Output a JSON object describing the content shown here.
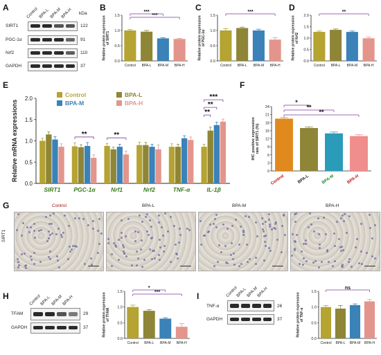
{
  "panels": {
    "A": {
      "label": "A",
      "lanes": [
        "Control",
        "BPA-L",
        "BPA-M",
        "BPA-H"
      ],
      "kda_header": "kDa",
      "rows": [
        {
          "name": "SIRT1",
          "kda": "122"
        },
        {
          "name": "PGC-1α",
          "kda": "91"
        },
        {
          "name": "Nrf2",
          "kda": "110"
        },
        {
          "name": "GAPDH",
          "kda": "37"
        }
      ]
    },
    "H_blot": {
      "label": "H",
      "lanes": [
        "Control",
        "BPA-L",
        "BPA-M",
        "BPA-H"
      ],
      "rows": [
        {
          "name": "TFAM",
          "kda": "29"
        },
        {
          "name": "GAPDH",
          "kda": "37"
        }
      ]
    },
    "I_blot": {
      "label": "I",
      "lanes": [
        "Control",
        "BPA-L",
        "BPA-M",
        "BPA-H"
      ],
      "rows": [
        {
          "name": "TNF-α",
          "kda": "26"
        },
        {
          "name": "GAPDH",
          "kda": "37"
        }
      ]
    },
    "G": {
      "label": "G",
      "row_label": "SIRT1",
      "groups": [
        "Control",
        "BPA-L",
        "BPA-M",
        "BPA-H"
      ]
    },
    "E": {
      "label": "E"
    },
    "F": {
      "label": "F"
    },
    "B": {
      "label": "B"
    },
    "C": {
      "label": "C"
    },
    "D": {
      "label": "D"
    }
  },
  "colors": {
    "control": "#b5a332",
    "bpa_l": "#8e8537",
    "bpa_m": "#3a82b8",
    "bpa_h": "#e3958c",
    "f_control": "#e08a1e",
    "f_bpa_l": "#8e8537",
    "f_bpa_m": "#2a9bb8",
    "f_bpa_h": "#f08d8d",
    "axis_text": "#3a7a1e",
    "sig": "#7a3a9a"
  },
  "chart_data": [
    {
      "id": "B",
      "type": "bar",
      "categories": [
        "Control",
        "BPA-L",
        "BPA-M",
        "BPA-H"
      ],
      "values": [
        1.0,
        0.96,
        0.74,
        0.72
      ],
      "errors": [
        0.03,
        0.04,
        0.02,
        0.02
      ],
      "ylabel": "Relative protein expression of SIRT1",
      "ylim": [
        0,
        1.5
      ],
      "yticks": [
        "0.0",
        "0.5",
        "1.0",
        "1.5"
      ],
      "sig": [
        {
          "from": 0,
          "to": 2,
          "text": "***"
        },
        {
          "from": 0,
          "to": 3,
          "text": "***"
        }
      ]
    },
    {
      "id": "C",
      "type": "bar",
      "categories": [
        "Control",
        "BPA-L",
        "BPA-M",
        "BPA-H"
      ],
      "values": [
        1.0,
        1.08,
        1.0,
        0.7
      ],
      "errors": [
        0.06,
        0.03,
        0.04,
        0.06
      ],
      "ylabel": "Relative protein expression of PGC-1α",
      "ylim": [
        0,
        1.5
      ],
      "yticks": [
        "0.0",
        "0.5",
        "1.0",
        "1.5"
      ],
      "sig": [
        {
          "from": 0,
          "to": 3,
          "text": "***"
        }
      ]
    },
    {
      "id": "D",
      "type": "bar",
      "categories": [
        "Control",
        "BPA-L",
        "BPA-M",
        "BPA-H"
      ],
      "values": [
        1.27,
        1.36,
        1.27,
        0.99
      ],
      "errors": [
        0.04,
        0.04,
        0.04,
        0.05
      ],
      "ylabel": "Relative protein expression of Nrf2",
      "ylim": [
        0,
        2.0
      ],
      "yticks": [
        "0.0",
        "0.5",
        "1.0",
        "1.5",
        "2.0"
      ],
      "sig": [
        {
          "from": 0,
          "to": 3,
          "text": "**"
        }
      ]
    },
    {
      "id": "E",
      "type": "bar",
      "categories": [
        "SIRT1",
        "PGC-1α",
        "Nrf1",
        "Nrf2",
        "TNF-α",
        "IL-1β"
      ],
      "series": [
        {
          "name": "Control",
          "values": [
            1.0,
            0.87,
            0.88,
            0.9,
            0.86,
            0.86
          ],
          "errors": [
            0.06,
            0.08,
            0.06,
            0.07,
            0.07,
            0.06
          ]
        },
        {
          "name": "BPA-L",
          "values": [
            1.15,
            0.85,
            0.8,
            0.9,
            0.86,
            1.24
          ],
          "errors": [
            0.06,
            0.06,
            0.05,
            0.06,
            0.06,
            0.08
          ]
        },
        {
          "name": "BPA-M",
          "values": [
            1.03,
            0.88,
            0.86,
            0.86,
            1.06,
            1.37
          ],
          "errors": [
            0.07,
            0.08,
            0.06,
            0.06,
            0.06,
            0.07
          ]
        },
        {
          "name": "BPA-H",
          "values": [
            0.86,
            0.6,
            0.68,
            0.8,
            1.02,
            1.45
          ],
          "errors": [
            0.07,
            0.07,
            0.08,
            0.1,
            0.07,
            0.06
          ]
        }
      ],
      "ylabel": "Relative mRNA expressions",
      "ylim": [
        0,
        2.0
      ],
      "yticks": [
        "0.0",
        "0.5",
        "1.0",
        "1.5",
        "2.0"
      ],
      "legend": [
        "Control",
        "BPA-L",
        "BPA-M",
        "BPA-H"
      ],
      "sig": [
        {
          "cat": 1,
          "from": 0,
          "to": 3,
          "text": "**"
        },
        {
          "cat": 2,
          "from": 0,
          "to": 3,
          "text": "**"
        },
        {
          "cat": 5,
          "from": 0,
          "to": 1,
          "text": "**"
        },
        {
          "cat": 5,
          "from": 0,
          "to": 2,
          "text": "**"
        },
        {
          "cat": 5,
          "from": 0,
          "to": 3,
          "text": "***"
        }
      ]
    },
    {
      "id": "F",
      "type": "bar",
      "categories": [
        "Control",
        "BPA-L",
        "BPA-M",
        "BPA-H"
      ],
      "values": [
        19.5,
        16.0,
        14.0,
        13.0
      ],
      "errors": [
        0.4,
        0.4,
        0.5,
        0.5
      ],
      "ylabel": "IHC positive expression rate of SIRT1 (%)",
      "ylim": [
        0,
        24
      ],
      "yticks": [
        "0",
        "3",
        "6",
        "9",
        "12",
        "15",
        "18",
        "21",
        "24"
      ],
      "sig": [
        {
          "from": 0,
          "to": 1,
          "text": "*"
        },
        {
          "from": 0,
          "to": 2,
          "text": "**"
        },
        {
          "from": 0,
          "to": 3,
          "text": "**"
        }
      ]
    },
    {
      "id": "H",
      "type": "bar",
      "categories": [
        "Control",
        "BPA-L",
        "BPA-M",
        "BPA-H"
      ],
      "values": [
        1.0,
        0.88,
        0.63,
        0.37
      ],
      "errors": [
        0.06,
        0.04,
        0.03,
        0.1
      ],
      "ylabel": "Relative protein expression of TFAM",
      "ylim": [
        0,
        1.5
      ],
      "yticks": [
        "0.0",
        "0.5",
        "1.0",
        "1.5"
      ],
      "sig": [
        {
          "from": 0,
          "to": 2,
          "text": "*"
        },
        {
          "from": 0,
          "to": 3,
          "text": "***"
        }
      ]
    },
    {
      "id": "I",
      "type": "bar",
      "categories": [
        "Control",
        "BPA-L",
        "BPA-M",
        "BPA-H"
      ],
      "values": [
        1.0,
        0.95,
        1.06,
        1.18
      ],
      "errors": [
        0.05,
        0.1,
        0.04,
        0.06
      ],
      "ylabel": "Relative protein expression of TNF-α",
      "ylim": [
        0,
        1.5
      ],
      "yticks": [
        "0.0",
        "0.5",
        "1.0",
        "1.5"
      ],
      "sig": [
        {
          "from": 0,
          "to": 3,
          "text": "ns"
        }
      ]
    }
  ]
}
